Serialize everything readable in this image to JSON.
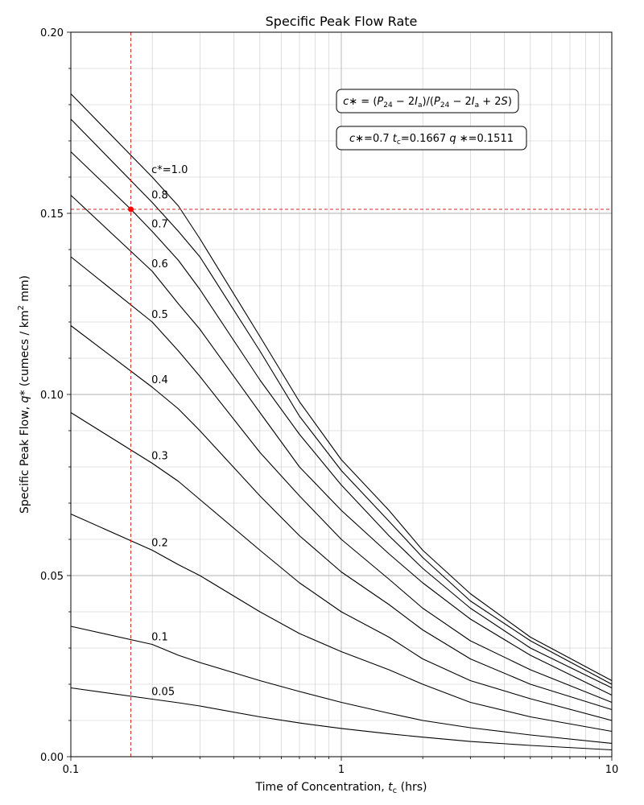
{
  "chart_data": {
    "type": "line",
    "title": "Specific Peak Flow Rate",
    "xlabel": "Time of Concentration, t_c (hrs)",
    "ylabel": "Specific Peak Flow, q* (cumecs / km² mm)",
    "x_scale": "log",
    "xlim": [
      0.1,
      10
    ],
    "ylim": [
      0.0,
      0.2
    ],
    "grid": true,
    "x_tick_labels": [
      "0.1",
      "1",
      "10"
    ],
    "y_tick_labels": [
      "0.00",
      "0.05",
      "0.10",
      "0.15",
      "0.20"
    ],
    "annotations": [
      "c* = (P24 − 2Ia)/(P24 − 2Ia + 2S)",
      "c*=0.7  tc=0.1667  q*=0.1511"
    ],
    "highlight_point": {
      "x": 0.1667,
      "y": 0.1511
    },
    "series": [
      {
        "label": "c*=1.0",
        "x": [
          0.1,
          0.2,
          0.25,
          0.3,
          0.5,
          0.7,
          1,
          1.5,
          2,
          3,
          5,
          10
        ],
        "values": [
          0.183,
          0.16,
          0.152,
          0.143,
          0.116,
          0.098,
          0.082,
          0.068,
          0.057,
          0.045,
          0.033,
          0.021
        ]
      },
      {
        "label": "0.8",
        "x": [
          0.1,
          0.2,
          0.25,
          0.3,
          0.5,
          0.7,
          1,
          1.5,
          2,
          3,
          5,
          10
        ],
        "values": [
          0.176,
          0.153,
          0.145,
          0.138,
          0.112,
          0.094,
          0.079,
          0.065,
          0.055,
          0.043,
          0.032,
          0.02
        ]
      },
      {
        "label": "0.7",
        "x": [
          0.1,
          0.1667,
          0.2,
          0.25,
          0.3,
          0.5,
          0.7,
          1,
          1.5,
          2,
          3,
          5,
          10
        ],
        "values": [
          0.167,
          0.1511,
          0.145,
          0.137,
          0.129,
          0.104,
          0.089,
          0.075,
          0.061,
          0.052,
          0.041,
          0.03,
          0.019
        ]
      },
      {
        "label": "0.6",
        "x": [
          0.1,
          0.2,
          0.25,
          0.3,
          0.5,
          0.7,
          1,
          1.5,
          2,
          3,
          5,
          10
        ],
        "values": [
          0.155,
          0.134,
          0.125,
          0.118,
          0.095,
          0.08,
          0.068,
          0.056,
          0.048,
          0.038,
          0.028,
          0.017
        ]
      },
      {
        "label": "0.5",
        "x": [
          0.1,
          0.2,
          0.25,
          0.3,
          0.5,
          0.7,
          1,
          1.5,
          2,
          3,
          5,
          10
        ],
        "values": [
          0.138,
          0.12,
          0.112,
          0.105,
          0.084,
          0.072,
          0.06,
          0.049,
          0.041,
          0.032,
          0.024,
          0.015
        ]
      },
      {
        "label": "0.4",
        "x": [
          0.1,
          0.2,
          0.25,
          0.3,
          0.5,
          0.7,
          1,
          1.5,
          2,
          3,
          5,
          10
        ],
        "values": [
          0.119,
          0.102,
          0.096,
          0.09,
          0.072,
          0.061,
          0.051,
          0.042,
          0.035,
          0.027,
          0.02,
          0.013
        ]
      },
      {
        "label": "0.3",
        "x": [
          0.1,
          0.2,
          0.25,
          0.3,
          0.5,
          0.7,
          1,
          1.5,
          2,
          3,
          5,
          10
        ],
        "values": [
          0.095,
          0.081,
          0.076,
          0.071,
          0.057,
          0.048,
          0.04,
          0.033,
          0.027,
          0.021,
          0.016,
          0.01
        ]
      },
      {
        "label": "0.2",
        "x": [
          0.1,
          0.2,
          0.25,
          0.3,
          0.5,
          0.7,
          1,
          1.5,
          2,
          3,
          5,
          10
        ],
        "values": [
          0.067,
          0.057,
          0.053,
          0.05,
          0.04,
          0.034,
          0.029,
          0.024,
          0.02,
          0.015,
          0.011,
          0.007
        ]
      },
      {
        "label": "0.1",
        "x": [
          0.1,
          0.2,
          0.25,
          0.3,
          0.5,
          0.7,
          1,
          1.5,
          2,
          3,
          5,
          10
        ],
        "values": [
          0.036,
          0.031,
          0.028,
          0.026,
          0.021,
          0.018,
          0.015,
          0.012,
          0.01,
          0.008,
          0.006,
          0.0037
        ]
      },
      {
        "label": "0.05",
        "x": [
          0.1,
          0.2,
          0.25,
          0.3,
          0.5,
          0.7,
          1,
          1.5,
          2,
          3,
          5,
          10
        ],
        "values": [
          0.019,
          0.0159,
          0.0149,
          0.014,
          0.011,
          0.0093,
          0.0078,
          0.0063,
          0.0054,
          0.0042,
          0.0031,
          0.0019
        ]
      }
    ]
  }
}
